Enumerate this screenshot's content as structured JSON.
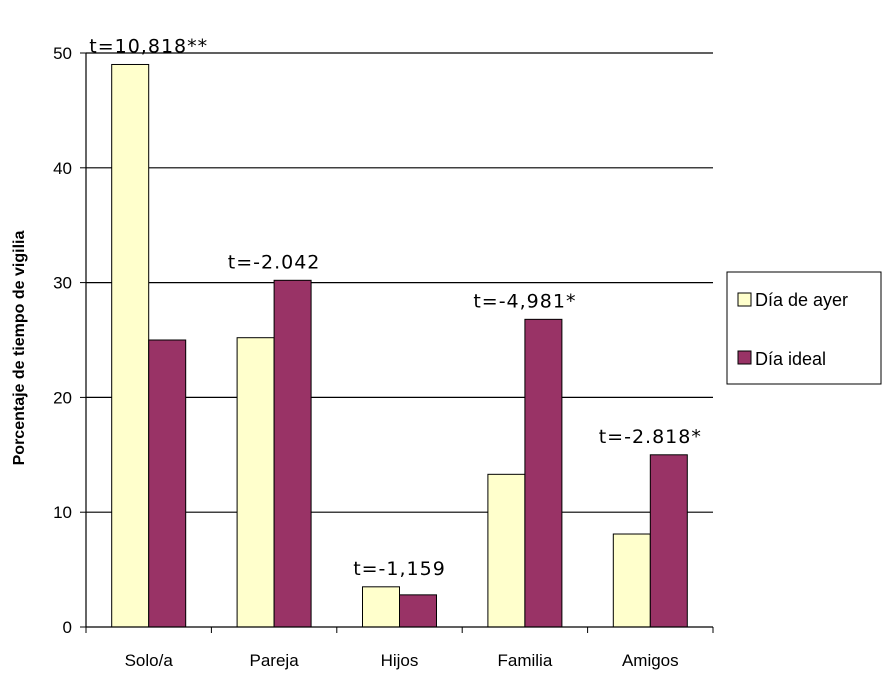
{
  "chart_data": {
    "type": "bar",
    "title": "",
    "xlabel": "",
    "ylabel": "Porcentaje de tiempo de vigilia",
    "ylim": [
      0,
      50
    ],
    "yticks": [
      0,
      10,
      20,
      30,
      40,
      50
    ],
    "grid": true,
    "legend_position": "right",
    "categories": [
      "Solo/a",
      "Pareja",
      "Hijos",
      "Familia",
      "Amigos"
    ],
    "series": [
      {
        "name": "Día de ayer",
        "color": "#FFFFCC",
        "values": [
          49.0,
          25.2,
          3.5,
          13.3,
          8.1
        ]
      },
      {
        "name": "Día ideal",
        "color": "#993366",
        "values": [
          25.0,
          30.2,
          2.8,
          26.8,
          15.0
        ]
      }
    ],
    "annotations": [
      "t=10,818**",
      "t=-2.042",
      "t=-1,159",
      "t=-4,981*",
      "t=-2.818*"
    ]
  }
}
